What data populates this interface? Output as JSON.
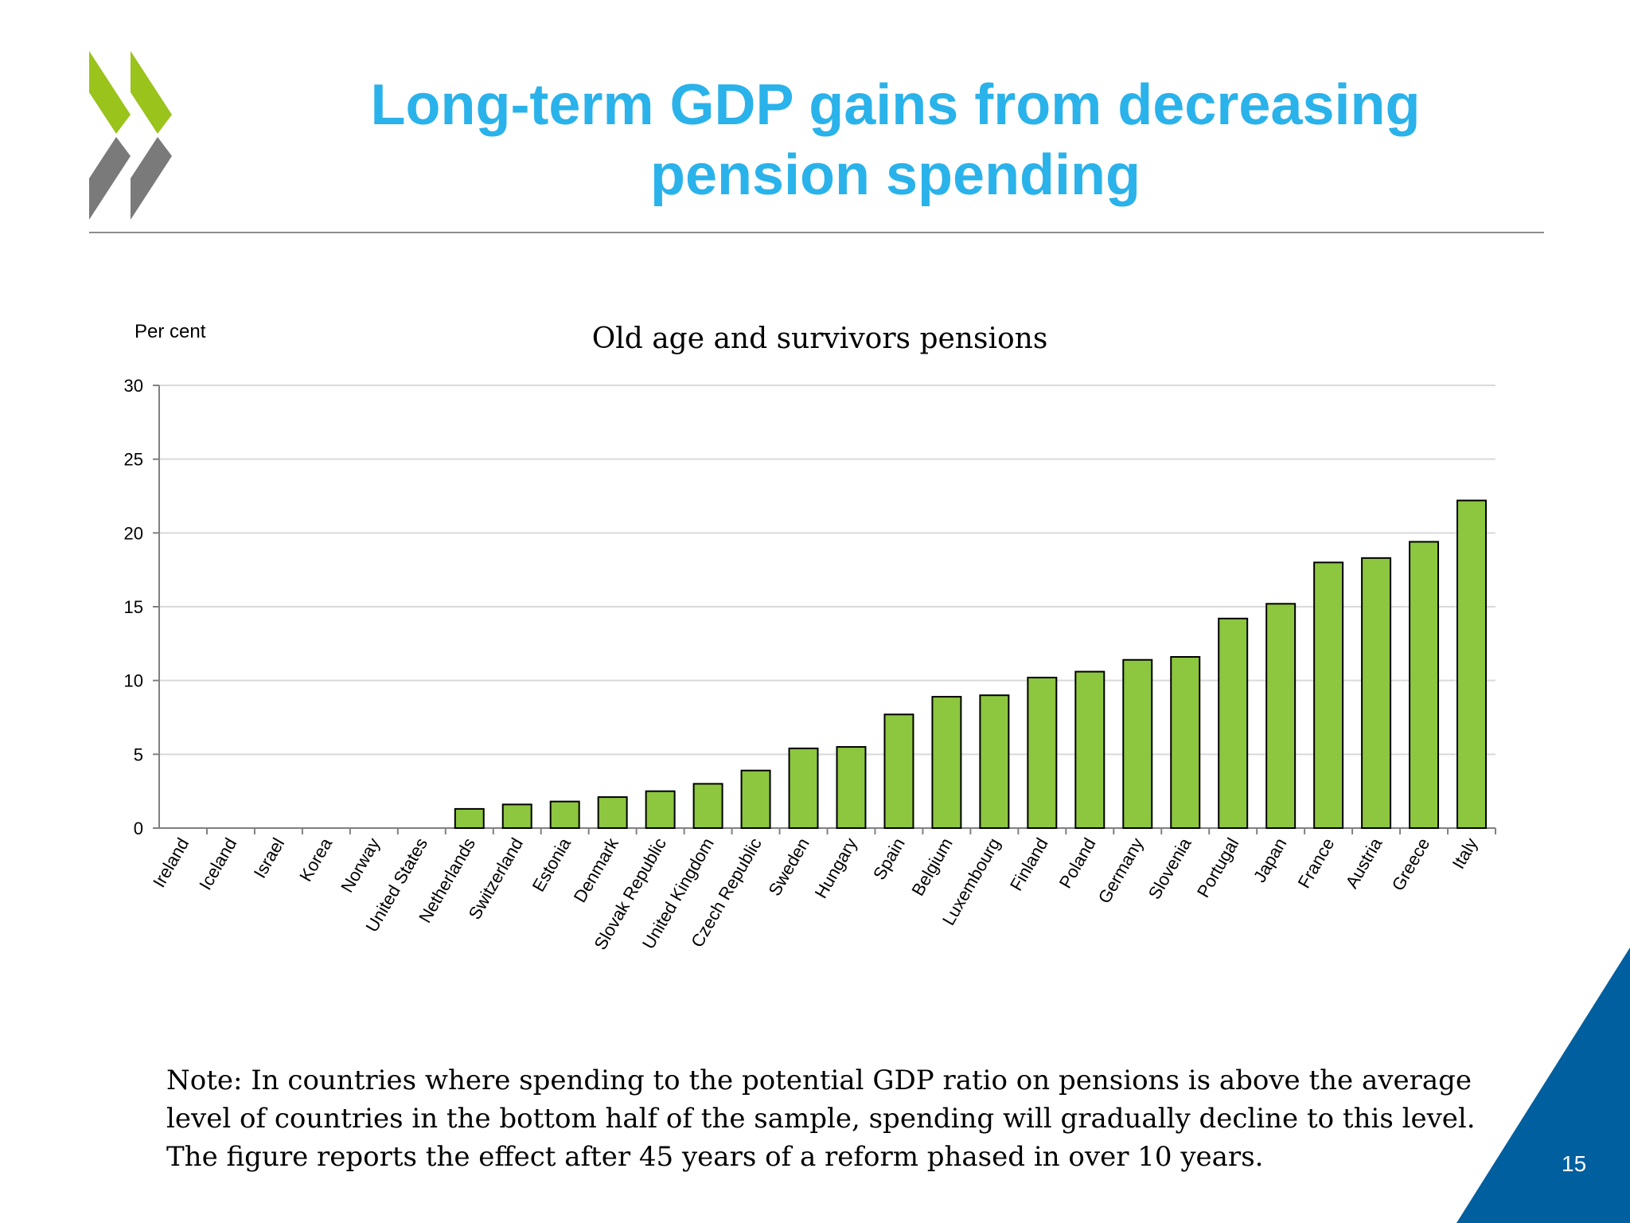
{
  "slide": {
    "title_line1": "Long-term GDP gains from decreasing",
    "title_line2": "pension spending",
    "page_number": "15",
    "accent_color": "#2ab2ea",
    "corner_color": "#005f9e",
    "logo_colors": [
      "#9ac31c",
      "#7a7a7a"
    ]
  },
  "note": {
    "line1": "Note: In countries where spending to the potential GDP ratio on pensions is above the average",
    "line2": "level of countries in the bottom half of the sample, spending will gradually decline to this level.",
    "line3": "The figure reports the effect after 45 years of a reform phased in over 10 years."
  },
  "chart_data": {
    "type": "bar",
    "title": "Old age and survivors pensions",
    "ylabel": "Per cent",
    "xlabel": "",
    "ylim": [
      0,
      30
    ],
    "yticks": [
      0,
      5,
      10,
      15,
      20,
      25,
      30
    ],
    "grid": true,
    "bar_color": "#8dc63f",
    "categories": [
      "Ireland",
      "Iceland",
      "Israel",
      "Korea",
      "Norway",
      "United States",
      "Netherlands",
      "Switzerland",
      "Estonia",
      "Denmark",
      "Slovak Republic",
      "United Kingdom",
      "Czech Republic",
      "Sweden",
      "Hungary",
      "Spain",
      "Belgium",
      "Luxembourg",
      "Finland",
      "Poland",
      "Germany",
      "Slovenia",
      "Portugal",
      "Japan",
      "France",
      "Austria",
      "Greece",
      "Italy"
    ],
    "values": [
      0,
      0,
      0,
      0,
      0,
      0,
      1.3,
      1.6,
      1.8,
      2.1,
      2.5,
      3.0,
      3.9,
      5.4,
      5.5,
      7.7,
      8.9,
      9.0,
      10.2,
      10.6,
      11.4,
      11.6,
      14.2,
      15.2,
      18.0,
      18.3,
      19.4,
      22.2
    ]
  }
}
